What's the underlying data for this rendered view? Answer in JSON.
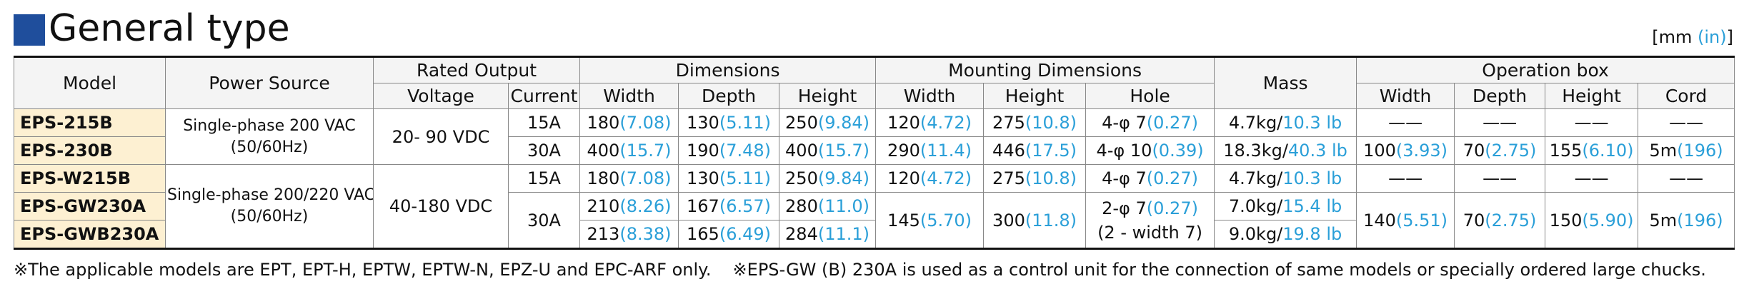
{
  "title": "General type",
  "unit": {
    "mm": "[mm",
    "in": "(in)",
    "close": "]"
  },
  "table": {
    "header": {
      "groups": [
        "Model",
        "Power Source",
        "Rated Output",
        "Dimensions",
        "Mounting Dimensions",
        "Mass",
        "Operation box"
      ],
      "sub": [
        "Voltage",
        "Current",
        "Width",
        "Depth",
        "Height",
        "Width",
        "Height",
        "Hole",
        "Width",
        "Depth",
        "Height",
        "Cord"
      ]
    },
    "rows": [
      [
        "EPS-215B",
        {
          "lines": [
            "Single-phase 200 VAC",
            "(50/60Hz)"
          ]
        },
        "20-  90 VDC",
        "15A",
        {
          "mm": "180",
          "in": "(7.08)"
        },
        {
          "mm": "130",
          "in": "(5.11)"
        },
        {
          "mm": "250",
          "in": "(9.84)"
        },
        {
          "mm": "120",
          "in": "(4.72)"
        },
        {
          "mm": "275",
          "in": "(10.8)"
        },
        {
          "mm": "4-φ   7",
          "in": "(0.27)"
        },
        {
          "mm": "4.7kg/",
          "in": "10.3 lb"
        },
        "——",
        "——",
        "——",
        "——"
      ],
      [
        "EPS-230B",
        "30A",
        {
          "mm": "400",
          "in": "(15.7)"
        },
        {
          "mm": "190",
          "in": "(7.48)"
        },
        {
          "mm": "400",
          "in": "(15.7)"
        },
        {
          "mm": "290",
          "in": "(11.4)"
        },
        {
          "mm": "446",
          "in": "(17.5)"
        },
        {
          "mm": "4-φ 10",
          "in": "(0.39)"
        },
        {
          "mm": "18.3kg/",
          "in": "40.3 lb"
        },
        {
          "mm": "100",
          "in": "(3.93)"
        },
        {
          "mm": "70",
          "in": "(2.75)"
        },
        {
          "mm": "155",
          "in": "(6.10)"
        },
        {
          "mm": "5m",
          "in": "(196)"
        }
      ],
      [
        "EPS-W215B",
        {
          "lines": [
            "Single-phase 200/220 VAC",
            "(50/60Hz)"
          ]
        },
        "40-180 VDC",
        "15A",
        {
          "mm": "180",
          "in": "(7.08)"
        },
        {
          "mm": "130",
          "in": "(5.11)"
        },
        {
          "mm": "250",
          "in": "(9.84)"
        },
        {
          "mm": "120",
          "in": "(4.72)"
        },
        {
          "mm": "275",
          "in": "(10.8)"
        },
        {
          "mm": "4-φ   7",
          "in": "(0.27)"
        },
        {
          "mm": "4.7kg/",
          "in": "10.3 lb"
        },
        "——",
        "——",
        "——",
        "——"
      ],
      [
        "EPS-GW230A",
        "30A",
        {
          "mm": "210",
          "in": "(8.26)"
        },
        {
          "mm": "167",
          "in": "(6.57)"
        },
        {
          "mm": "280",
          "in": "(11.0)"
        },
        {
          "mm": "145",
          "in": "(5.70)"
        },
        {
          "mm": "300",
          "in": "(11.8)"
        },
        {
          "mm": "2-φ   7",
          "in": "(0.27)",
          "note": "(2 - width 7)"
        },
        {
          "mm": "7.0kg/",
          "in": "15.4 lb"
        },
        {
          "mm": "140",
          "in": "(5.51)"
        },
        {
          "mm": "70",
          "in": "(2.75)"
        },
        {
          "mm": "150",
          "in": "(5.90)"
        },
        {
          "mm": "5m",
          "in": "(196)"
        }
      ],
      [
        "EPS-GWB230A",
        {
          "mm": "213",
          "in": "(8.38)"
        },
        {
          "mm": "165",
          "in": "(6.49)"
        },
        {
          "mm": "284",
          "in": "(11.1)"
        },
        {
          "mm": "9.0kg/",
          "in": "19.8 lb"
        }
      ]
    ]
  },
  "footnotes": [
    "※The applicable models are EPT, EPT-H, EPTW, EPTW-N, EPZ-U and EPC-ARF only.",
    "※EPS-GW (B) 230A is used as a control unit for the connection of same models or specially ordered large chucks."
  ]
}
